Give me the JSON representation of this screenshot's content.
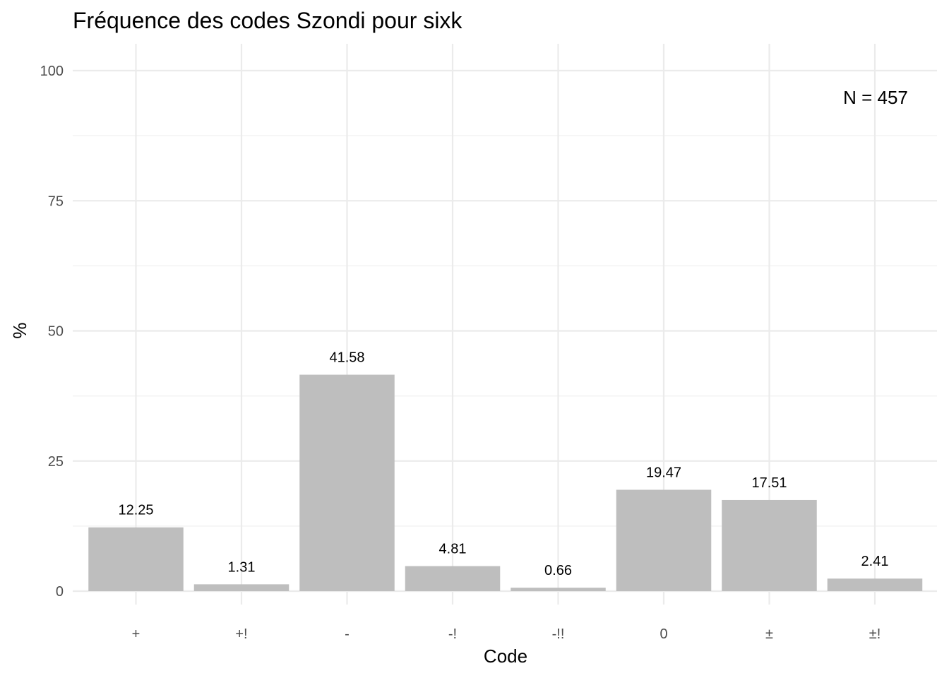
{
  "chart_data": {
    "type": "bar",
    "title": "Fréquence des codes Szondi pour sixk",
    "xlabel": "Code",
    "ylabel": "%",
    "categories": [
      "+",
      "+!",
      "-",
      "-!",
      "-!!",
      "0",
      "±",
      "±!"
    ],
    "values": [
      12.25,
      1.31,
      41.58,
      4.81,
      0.66,
      19.47,
      17.51,
      2.41
    ],
    "data_labels": [
      "12.25",
      "1.31",
      "41.58",
      "4.81",
      "0.66",
      "19.47",
      "17.51",
      "2.41"
    ],
    "ylim": [
      0,
      100
    ],
    "yticks": [
      0,
      25,
      50,
      75,
      100
    ],
    "annotation": "N = 457",
    "grid": true,
    "bar_color": "#bebebe"
  }
}
